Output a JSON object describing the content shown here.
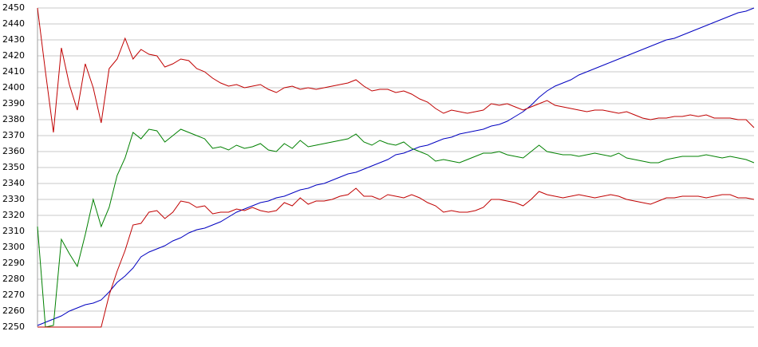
{
  "chart_data": {
    "type": "line",
    "ylim": [
      2250,
      2450
    ],
    "yticks": [
      2250,
      2260,
      2270,
      2280,
      2290,
      2300,
      2310,
      2320,
      2330,
      2340,
      2350,
      2360,
      2370,
      2380,
      2390,
      2400,
      2410,
      2420,
      2430,
      2440,
      2450
    ],
    "grid": true,
    "series": [
      {
        "color": "#0000c0",
        "values": [
          2251,
          2253,
          2255,
          2257,
          2260,
          2262,
          2264,
          2265,
          2267,
          2272,
          2278,
          2282,
          2287,
          2294,
          2297,
          2299,
          2301,
          2304,
          2306,
          2309,
          2311,
          2312,
          2314,
          2316,
          2319,
          2322,
          2324,
          2326,
          2328,
          2329,
          2331,
          2332,
          2334,
          2336,
          2337,
          2339,
          2340,
          2342,
          2344,
          2346,
          2347,
          2349,
          2351,
          2353,
          2355,
          2358,
          2359,
          2361,
          2363,
          2364,
          2366,
          2368,
          2369,
          2371,
          2372,
          2373,
          2374,
          2376,
          2377,
          2379,
          2382,
          2385,
          2389,
          2394,
          2398,
          2401,
          2403,
          2405,
          2408,
          2410,
          2412,
          2414,
          2416,
          2418,
          2420,
          2422,
          2424,
          2426,
          2428,
          2430,
          2431,
          2433,
          2435,
          2437,
          2439,
          2441,
          2443,
          2445,
          2447,
          2448,
          2450
        ]
      },
      {
        "color": "#c00000",
        "values": [
          2450,
          2410,
          2372,
          2425,
          2402,
          2386,
          2415,
          2400,
          2378,
          2412,
          2418,
          2431,
          2418,
          2424,
          2421,
          2420,
          2413,
          2415,
          2418,
          2417,
          2412,
          2410,
          2406,
          2403,
          2401,
          2402,
          2400,
          2401,
          2402,
          2399,
          2397,
          2400,
          2401,
          2399,
          2400,
          2399,
          2400,
          2401,
          2402,
          2403,
          2405,
          2401,
          2398,
          2399,
          2399,
          2397,
          2398,
          2396,
          2393,
          2391,
          2387,
          2384,
          2386,
          2385,
          2384,
          2385,
          2386,
          2390,
          2389,
          2390,
          2388,
          2386,
          2388,
          2390,
          2392,
          2389,
          2388,
          2387,
          2386,
          2385,
          2386,
          2386,
          2385,
          2384,
          2385,
          2383,
          2381,
          2380,
          2381,
          2381,
          2382,
          2382,
          2383,
          2382,
          2383,
          2381,
          2381,
          2381,
          2380,
          2380,
          2375
        ]
      },
      {
        "color": "#008000",
        "values": [
          2313,
          2250,
          2251,
          2305,
          2296,
          2288,
          2308,
          2330,
          2313,
          2325,
          2345,
          2356,
          2372,
          2368,
          2374,
          2373,
          2366,
          2370,
          2374,
          2372,
          2370,
          2368,
          2362,
          2363,
          2361,
          2364,
          2362,
          2363,
          2365,
          2361,
          2360,
          2365,
          2362,
          2367,
          2363,
          2364,
          2365,
          2366,
          2367,
          2368,
          2371,
          2366,
          2364,
          2367,
          2365,
          2364,
          2366,
          2362,
          2360,
          2358,
          2354,
          2355,
          2354,
          2353,
          2355,
          2357,
          2359,
          2359,
          2360,
          2358,
          2357,
          2356,
          2360,
          2364,
          2360,
          2359,
          2358,
          2358,
          2357,
          2358,
          2359,
          2358,
          2357,
          2359,
          2356,
          2355,
          2354,
          2353,
          2353,
          2355,
          2356,
          2357,
          2357,
          2357,
          2358,
          2357,
          2356,
          2357,
          2356,
          2355,
          2353
        ]
      },
      {
        "color": "#c00000",
        "values": [
          2250,
          2250,
          2250,
          2250,
          2250,
          2250,
          2250,
          2250,
          2250,
          2270,
          2285,
          2298,
          2314,
          2315,
          2322,
          2323,
          2318,
          2322,
          2329,
          2328,
          2325,
          2326,
          2321,
          2322,
          2322,
          2324,
          2323,
          2325,
          2323,
          2322,
          2323,
          2328,
          2326,
          2331,
          2327,
          2329,
          2329,
          2330,
          2332,
          2333,
          2337,
          2332,
          2332,
          2330,
          2333,
          2332,
          2331,
          2333,
          2331,
          2328,
          2326,
          2322,
          2323,
          2322,
          2322,
          2323,
          2325,
          2330,
          2330,
          2329,
          2328,
          2326,
          2330,
          2335,
          2333,
          2332,
          2331,
          2332,
          2333,
          2332,
          2331,
          2332,
          2333,
          2332,
          2330,
          2329,
          2328,
          2327,
          2329,
          2331,
          2331,
          2332,
          2332,
          2332,
          2331,
          2332,
          2333,
          2333,
          2331,
          2331,
          2330
        ]
      }
    ]
  }
}
